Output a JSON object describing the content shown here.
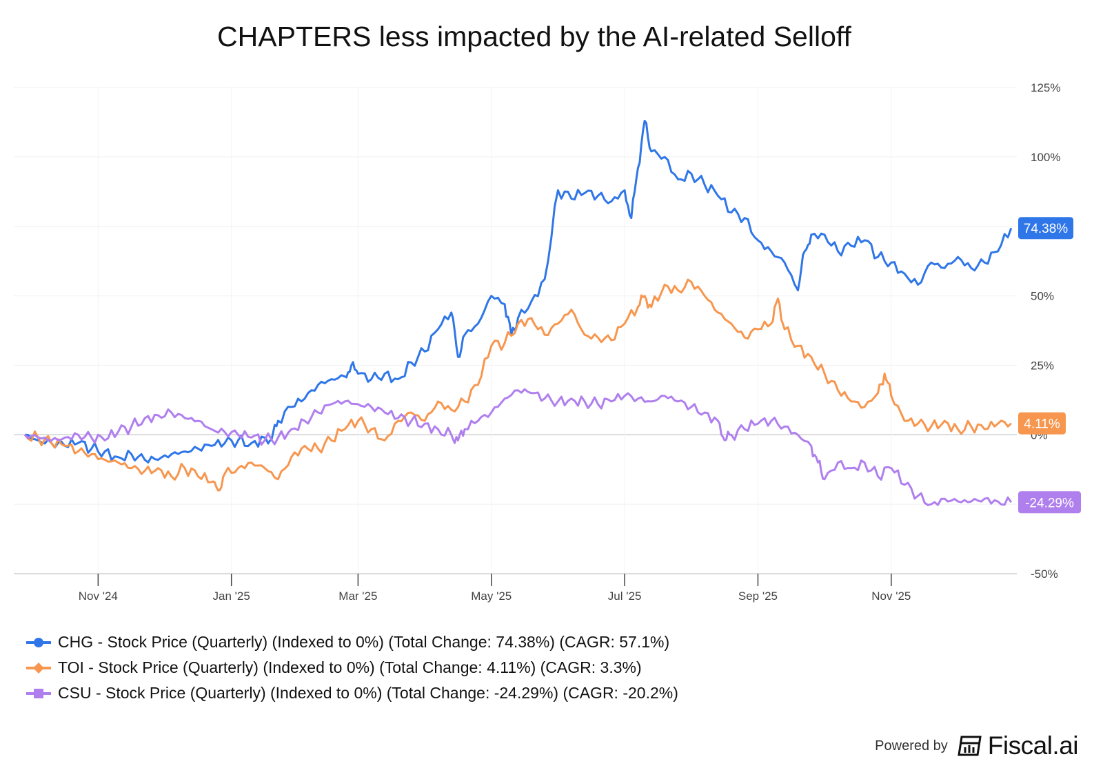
{
  "chart_data": {
    "type": "line",
    "title": "CHAPTERS less impacted by the AI-related Selloff",
    "y_ticks": [
      "125%",
      "100%",
      "50%",
      "25%",
      "0%",
      "-50%"
    ],
    "y_tick_values": [
      125,
      100,
      50,
      25,
      0,
      -50
    ],
    "ylim": [
      -50,
      125
    ],
    "x_ticks": [
      "Nov '24",
      "Jan '25",
      "Mar '25",
      "May '25",
      "Jul '25",
      "Sep '25",
      "Nov '25"
    ],
    "x_tick_values": [
      1.1,
      3.1,
      5.0,
      7.0,
      9.0,
      11.0,
      13.0
    ],
    "xlim": [
      0,
      15
    ],
    "series": [
      {
        "name": "CHG",
        "legend": "CHG - Stock Price (Quarterly) (Indexed to 0%) (Total Change: 74.38%) (CAGR: 57.1%)",
        "color": "#2f76e8",
        "marker": "circle",
        "end_label": "74.38%",
        "points": [
          [
            0,
            0
          ],
          [
            0.2,
            -2
          ],
          [
            0.4,
            -3
          ],
          [
            0.6,
            -4
          ],
          [
            0.8,
            -3
          ],
          [
            1.0,
            -5
          ],
          [
            1.2,
            -6
          ],
          [
            1.4,
            -8
          ],
          [
            1.6,
            -7
          ],
          [
            1.8,
            -9
          ],
          [
            2.0,
            -9
          ],
          [
            2.2,
            -7
          ],
          [
            2.4,
            -6
          ],
          [
            2.6,
            -5
          ],
          [
            2.8,
            -4
          ],
          [
            3.0,
            -3
          ],
          [
            3.2,
            -2
          ],
          [
            3.4,
            -3
          ],
          [
            3.6,
            -1
          ],
          [
            3.7,
            -2
          ],
          [
            3.8,
            5
          ],
          [
            4.0,
            10
          ],
          [
            4.2,
            13
          ],
          [
            4.4,
            18
          ],
          [
            4.6,
            20
          ],
          [
            4.8,
            21
          ],
          [
            4.9,
            25
          ],
          [
            5.0,
            22
          ],
          [
            5.2,
            20
          ],
          [
            5.4,
            22
          ],
          [
            5.6,
            20
          ],
          [
            5.8,
            26
          ],
          [
            6.0,
            30
          ],
          [
            6.2,
            38
          ],
          [
            6.4,
            44
          ],
          [
            6.5,
            28
          ],
          [
            6.6,
            36
          ],
          [
            6.8,
            40
          ],
          [
            7.0,
            50
          ],
          [
            7.2,
            47
          ],
          [
            7.3,
            36
          ],
          [
            7.4,
            42
          ],
          [
            7.6,
            48
          ],
          [
            7.8,
            56
          ],
          [
            8.0,
            88
          ],
          [
            8.2,
            85
          ],
          [
            8.4,
            87
          ],
          [
            8.6,
            86
          ],
          [
            8.8,
            84
          ],
          [
            9.0,
            88
          ],
          [
            9.1,
            78
          ],
          [
            9.2,
            96
          ],
          [
            9.3,
            113
          ],
          [
            9.4,
            102
          ],
          [
            9.6,
            100
          ],
          [
            9.8,
            92
          ],
          [
            10.0,
            94
          ],
          [
            10.2,
            90
          ],
          [
            10.4,
            86
          ],
          [
            10.6,
            80
          ],
          [
            10.8,
            78
          ],
          [
            11.0,
            70
          ],
          [
            11.2,
            66
          ],
          [
            11.4,
            62
          ],
          [
            11.6,
            52
          ],
          [
            11.7,
            66
          ],
          [
            11.8,
            72
          ],
          [
            12.0,
            72
          ],
          [
            12.2,
            66
          ],
          [
            12.4,
            68
          ],
          [
            12.6,
            70
          ],
          [
            12.8,
            64
          ],
          [
            13.0,
            62
          ],
          [
            13.2,
            58
          ],
          [
            13.4,
            54
          ],
          [
            13.6,
            62
          ],
          [
            13.8,
            60
          ],
          [
            14.0,
            64
          ],
          [
            14.2,
            60
          ],
          [
            14.4,
            62
          ],
          [
            14.6,
            66
          ],
          [
            14.8,
            74.38
          ]
        ]
      },
      {
        "name": "TOI",
        "legend": "TOI - Stock Price (Quarterly) (Indexed to 0%) (Total Change: 4.11%) (CAGR: 3.3%)",
        "color": "#f7964e",
        "marker": "diamond",
        "end_label": "4.11%",
        "points": [
          [
            0,
            0
          ],
          [
            0.2,
            -1
          ],
          [
            0.4,
            -3
          ],
          [
            0.6,
            -4
          ],
          [
            0.8,
            -6
          ],
          [
            1.0,
            -7
          ],
          [
            1.2,
            -9
          ],
          [
            1.4,
            -10
          ],
          [
            1.6,
            -12
          ],
          [
            1.8,
            -13
          ],
          [
            2.0,
            -12
          ],
          [
            2.2,
            -15
          ],
          [
            2.4,
            -12
          ],
          [
            2.6,
            -15
          ],
          [
            2.8,
            -17
          ],
          [
            2.9,
            -20
          ],
          [
            3.0,
            -14
          ],
          [
            3.2,
            -12
          ],
          [
            3.4,
            -10
          ],
          [
            3.6,
            -12
          ],
          [
            3.8,
            -16
          ],
          [
            4.0,
            -8
          ],
          [
            4.2,
            -4
          ],
          [
            4.4,
            -5
          ],
          [
            4.6,
            -2
          ],
          [
            4.8,
            2
          ],
          [
            5.0,
            5
          ],
          [
            5.2,
            2
          ],
          [
            5.4,
            -2
          ],
          [
            5.6,
            5
          ],
          [
            5.8,
            8
          ],
          [
            6.0,
            5
          ],
          [
            6.2,
            12
          ],
          [
            6.4,
            9
          ],
          [
            6.6,
            12
          ],
          [
            6.8,
            18
          ],
          [
            7.0,
            32
          ],
          [
            7.2,
            33
          ],
          [
            7.4,
            40
          ],
          [
            7.6,
            42
          ],
          [
            7.8,
            36
          ],
          [
            8.0,
            40
          ],
          [
            8.2,
            45
          ],
          [
            8.4,
            36
          ],
          [
            8.6,
            35
          ],
          [
            8.8,
            34
          ],
          [
            9.0,
            40
          ],
          [
            9.2,
            46
          ],
          [
            9.3,
            50
          ],
          [
            9.4,
            46
          ],
          [
            9.6,
            54
          ],
          [
            9.8,
            52
          ],
          [
            10.0,
            55
          ],
          [
            10.2,
            50
          ],
          [
            10.4,
            44
          ],
          [
            10.6,
            40
          ],
          [
            10.8,
            35
          ],
          [
            11.0,
            38
          ],
          [
            11.2,
            40
          ],
          [
            11.3,
            49
          ],
          [
            11.4,
            38
          ],
          [
            11.6,
            32
          ],
          [
            11.8,
            28
          ],
          [
            12.0,
            22
          ],
          [
            12.2,
            16
          ],
          [
            12.4,
            12
          ],
          [
            12.6,
            10
          ],
          [
            12.8,
            15
          ],
          [
            12.9,
            22
          ],
          [
            13.0,
            14
          ],
          [
            13.2,
            5
          ],
          [
            13.4,
            4
          ],
          [
            13.6,
            3
          ],
          [
            13.8,
            5
          ],
          [
            14.0,
            2
          ],
          [
            14.2,
            3
          ],
          [
            14.4,
            2
          ],
          [
            14.6,
            4
          ],
          [
            14.8,
            4.11
          ]
        ]
      },
      {
        "name": "CSU",
        "legend": "CSU - Stock Price (Quarterly) (Indexed to 0%) (Total Change: -24.29%) (CAGR: -20.2%)",
        "color": "#b07fee",
        "marker": "square",
        "end_label": "-24.29%",
        "points": [
          [
            0,
            0
          ],
          [
            0.2,
            -1
          ],
          [
            0.4,
            -2
          ],
          [
            0.6,
            -1
          ],
          [
            0.8,
            0
          ],
          [
            1.0,
            -1
          ],
          [
            1.2,
            -2
          ],
          [
            1.4,
            1
          ],
          [
            1.6,
            3
          ],
          [
            1.8,
            6
          ],
          [
            2.0,
            7
          ],
          [
            2.2,
            8
          ],
          [
            2.4,
            6
          ],
          [
            2.6,
            5
          ],
          [
            2.8,
            2
          ],
          [
            3.0,
            1
          ],
          [
            3.2,
            0
          ],
          [
            3.4,
            -1
          ],
          [
            3.6,
            -2
          ],
          [
            3.8,
            -1
          ],
          [
            4.0,
            2
          ],
          [
            4.2,
            5
          ],
          [
            4.4,
            8
          ],
          [
            4.6,
            11
          ],
          [
            4.8,
            12
          ],
          [
            5.0,
            11
          ],
          [
            5.2,
            10
          ],
          [
            5.4,
            8
          ],
          [
            5.6,
            6
          ],
          [
            5.8,
            5
          ],
          [
            6.0,
            4
          ],
          [
            6.2,
            2
          ],
          [
            6.4,
            0
          ],
          [
            6.5,
            -2
          ],
          [
            6.6,
            2
          ],
          [
            6.8,
            5
          ],
          [
            7.0,
            8
          ],
          [
            7.2,
            13
          ],
          [
            7.4,
            16
          ],
          [
            7.6,
            15
          ],
          [
            7.8,
            13
          ],
          [
            8.0,
            12
          ],
          [
            8.2,
            13
          ],
          [
            8.4,
            12
          ],
          [
            8.6,
            11
          ],
          [
            8.8,
            12
          ],
          [
            9.0,
            14
          ],
          [
            9.2,
            13
          ],
          [
            9.4,
            12
          ],
          [
            9.6,
            14
          ],
          [
            9.8,
            12
          ],
          [
            10.0,
            10
          ],
          [
            10.2,
            8
          ],
          [
            10.4,
            5
          ],
          [
            10.5,
            -2
          ],
          [
            10.6,
            0
          ],
          [
            10.8,
            2
          ],
          [
            11.0,
            4
          ],
          [
            11.2,
            5
          ],
          [
            11.4,
            3
          ],
          [
            11.6,
            0
          ],
          [
            11.8,
            -4
          ],
          [
            11.9,
            -10
          ],
          [
            12.0,
            -16
          ],
          [
            12.2,
            -10
          ],
          [
            12.4,
            -12
          ],
          [
            12.6,
            -10
          ],
          [
            12.8,
            -15
          ],
          [
            13.0,
            -12
          ],
          [
            13.2,
            -18
          ],
          [
            13.4,
            -22
          ],
          [
            13.6,
            -25
          ],
          [
            13.8,
            -23
          ],
          [
            14.0,
            -24
          ],
          [
            14.2,
            -24
          ],
          [
            14.4,
            -23
          ],
          [
            14.6,
            -24
          ],
          [
            14.8,
            -24.29
          ]
        ]
      }
    ]
  },
  "branding": {
    "powered_by": "Powered by",
    "brand_name": "Fiscal.ai",
    "logo_icon": "fiscal-logo-icon"
  }
}
